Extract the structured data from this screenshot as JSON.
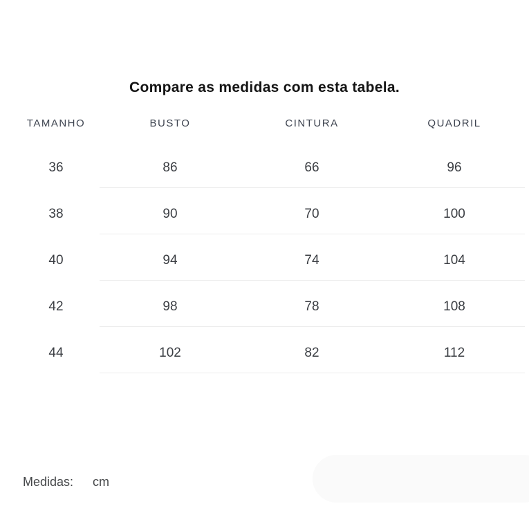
{
  "title": "Compare as medidas com esta tabela.",
  "table": {
    "headers": [
      "TAMANHO",
      "BUSTO",
      "CINTURA",
      "QUADRIL"
    ],
    "rows": [
      [
        "36",
        "86",
        "66",
        "96"
      ],
      [
        "38",
        "90",
        "70",
        "100"
      ],
      [
        "40",
        "94",
        "74",
        "104"
      ],
      [
        "42",
        "98",
        "78",
        "108"
      ],
      [
        "44",
        "102",
        "82",
        "112"
      ]
    ]
  },
  "footer": {
    "label": "Medidas:",
    "unit": "cm"
  },
  "colors": {
    "title": "#141414",
    "header_text": "#3e4450",
    "cell_text": "#3b3e43",
    "divider": "#ececec",
    "pill_background": "#fafafa"
  }
}
